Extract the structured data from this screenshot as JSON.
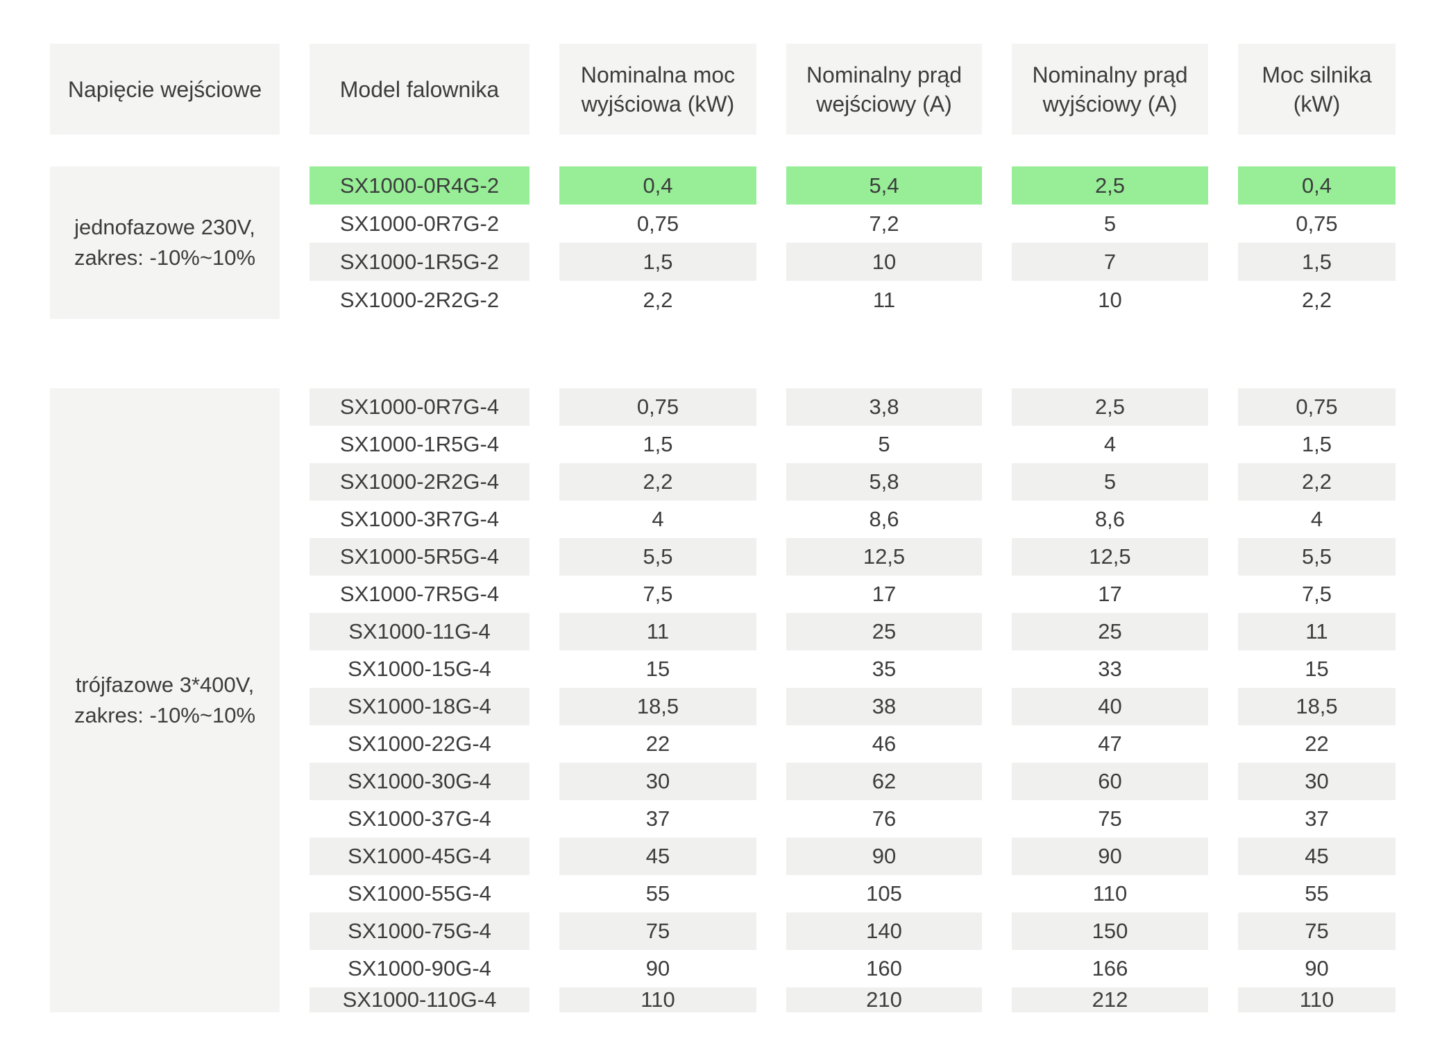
{
  "table": {
    "headers": [
      "Napięcie wejściowe",
      "Model falownika",
      "Nominalna moc wyjściowa (kW)",
      "Nominalny prąd wejściowy (A)",
      "Nominalny prąd wyjściowy (A)",
      "Moc silnika (kW)"
    ],
    "groups": [
      {
        "label_lines": [
          "jednofazowe 230V,",
          "zakres: -10%~10%"
        ],
        "rows": [
          {
            "model": "SX1000-0R4G-2",
            "values": [
              "0,4",
              "5,4",
              "2,5",
              "0,4"
            ],
            "highlight": true
          },
          {
            "model": "SX1000-0R7G-2",
            "values": [
              "0,75",
              "7,2",
              "5",
              "0,75"
            ],
            "highlight": false
          },
          {
            "model": "SX1000-1R5G-2",
            "values": [
              "1,5",
              "10",
              "7",
              "1,5"
            ],
            "highlight": false
          },
          {
            "model": "SX1000-2R2G-2",
            "values": [
              "2,2",
              "11",
              "10",
              "2,2"
            ],
            "highlight": false
          }
        ]
      },
      {
        "label_lines": [
          "trójfazowe 3*400V,",
          "zakres: -10%~10%"
        ],
        "rows": [
          {
            "model": "SX1000-0R7G-4",
            "values": [
              "0,75",
              "3,8",
              "2,5",
              "0,75"
            ],
            "highlight": false
          },
          {
            "model": "SX1000-1R5G-4",
            "values": [
              "1,5",
              "5",
              "4",
              "1,5"
            ],
            "highlight": false
          },
          {
            "model": "SX1000-2R2G-4",
            "values": [
              "2,2",
              "5,8",
              "5",
              "2,2"
            ],
            "highlight": false
          },
          {
            "model": "SX1000-3R7G-4",
            "values": [
              "4",
              "8,6",
              "8,6",
              "4"
            ],
            "highlight": false
          },
          {
            "model": "SX1000-5R5G-4",
            "values": [
              "5,5",
              "12,5",
              "12,5",
              "5,5"
            ],
            "highlight": false
          },
          {
            "model": "SX1000-7R5G-4",
            "values": [
              "7,5",
              "17",
              "17",
              "7,5"
            ],
            "highlight": false
          },
          {
            "model": "SX1000-11G-4",
            "values": [
              "11",
              "25",
              "25",
              "11"
            ],
            "highlight": false
          },
          {
            "model": "SX1000-15G-4",
            "values": [
              "15",
              "35",
              "33",
              "15"
            ],
            "highlight": false
          },
          {
            "model": "SX1000-18G-4",
            "values": [
              "18,5",
              "38",
              "40",
              "18,5"
            ],
            "highlight": false
          },
          {
            "model": "SX1000-22G-4",
            "values": [
              "22",
              "46",
              "47",
              "22"
            ],
            "highlight": false
          },
          {
            "model": "SX1000-30G-4",
            "values": [
              "30",
              "62",
              "60",
              "30"
            ],
            "highlight": false
          },
          {
            "model": "SX1000-37G-4",
            "values": [
              "37",
              "76",
              "75",
              "37"
            ],
            "highlight": false
          },
          {
            "model": "SX1000-45G-4",
            "values": [
              "45",
              "90",
              "90",
              "45"
            ],
            "highlight": false
          },
          {
            "model": "SX1000-55G-4",
            "values": [
              "55",
              "105",
              "110",
              "55"
            ],
            "highlight": false
          },
          {
            "model": "SX1000-75G-4",
            "values": [
              "75",
              "140",
              "150",
              "75"
            ],
            "highlight": false
          },
          {
            "model": "SX1000-90G-4",
            "values": [
              "90",
              "160",
              "166",
              "90"
            ],
            "highlight": false
          },
          {
            "model": "SX1000-110G-4",
            "values": [
              "110",
              "210",
              "212",
              "110"
            ],
            "highlight": false
          }
        ]
      }
    ]
  },
  "colors": {
    "highlight_green": "#97ee97",
    "stripe_gray": "#f0f0ef",
    "panel_gray": "#f4f4f3",
    "text": "#3c3c3c",
    "background": "#ffffff"
  }
}
